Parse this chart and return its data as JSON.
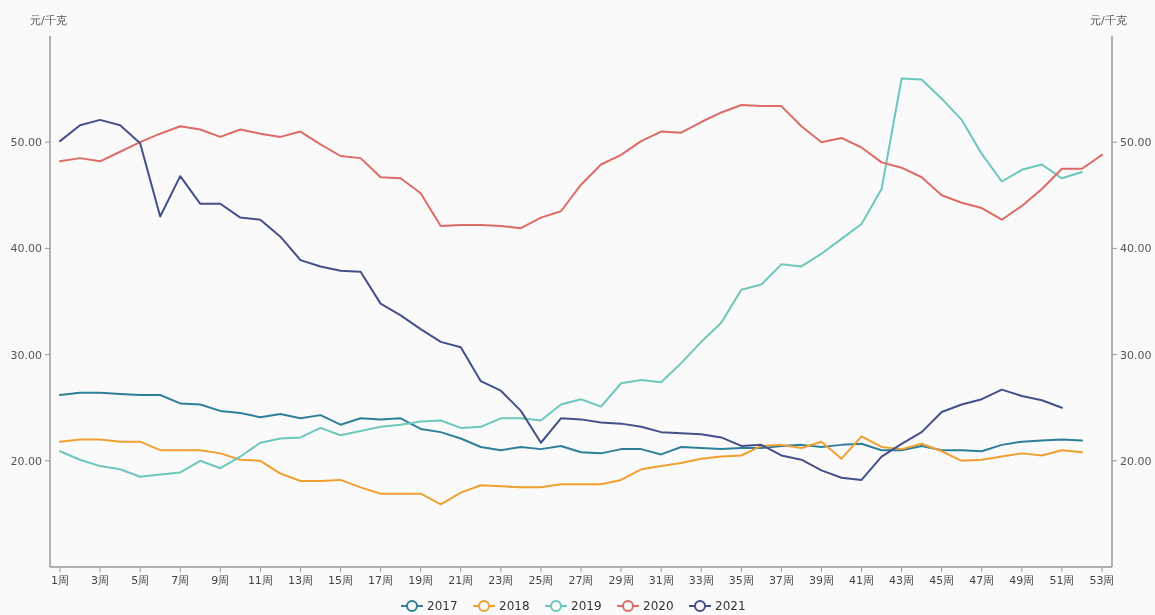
{
  "chart_data": {
    "type": "line",
    "ylabel": "元/千克",
    "y2label": "元/千克",
    "categories": [
      "1周",
      null,
      "3周",
      null,
      "5周",
      null,
      "7周",
      null,
      "9周",
      null,
      "11周",
      null,
      "13周",
      null,
      "15周",
      null,
      "17周",
      null,
      "19周",
      null,
      "21周",
      null,
      "23周",
      null,
      "25周",
      null,
      "27周",
      null,
      "29周",
      null,
      "31周",
      null,
      "33周",
      null,
      "35周",
      null,
      "37周",
      null,
      "39周",
      null,
      "41周",
      null,
      "43周",
      null,
      "45周",
      null,
      "47周",
      null,
      "49周",
      null,
      "51周",
      null,
      "53周"
    ],
    "ylim": [
      10,
      60
    ],
    "yticks": [
      {
        "value": 20,
        "label": "20.00"
      },
      {
        "value": 30,
        "label": "30.00"
      },
      {
        "value": 40,
        "label": "40.00"
      },
      {
        "value": 50,
        "label": "50.00"
      }
    ],
    "y2lim": [
      10,
      60
    ],
    "y2ticks": [
      {
        "value": 20,
        "label": "20.00"
      },
      {
        "value": 30,
        "label": "30.00"
      },
      {
        "value": 40,
        "label": "40.00"
      },
      {
        "value": 50,
        "label": "50.00"
      }
    ],
    "legend": "bottom",
    "series": [
      {
        "name": "2017",
        "color": "#2f7f9a",
        "values": [
          26.2,
          26.4,
          26.4,
          26.3,
          26.2,
          26.2,
          25.4,
          25.3,
          24.7,
          24.5,
          24.1,
          24.4,
          24.0,
          24.3,
          23.4,
          24.0,
          23.9,
          24.0,
          23.0,
          22.7,
          22.1,
          21.3,
          21.0,
          21.3,
          21.1,
          21.4,
          20.8,
          20.7,
          21.1,
          21.1,
          20.6,
          21.3,
          21.2,
          21.1,
          21.2,
          21.2,
          21.4,
          21.5,
          21.3,
          21.5,
          21.6,
          21.0,
          21.0,
          21.4,
          21.0,
          21.0,
          20.9,
          21.5,
          21.8,
          21.9,
          22.0,
          21.9,
          null
        ]
      },
      {
        "name": "2018",
        "color": "#f0a030",
        "values": [
          21.8,
          22.0,
          22.0,
          21.8,
          21.8,
          21.0,
          21.0,
          21.0,
          20.7,
          20.1,
          20.0,
          18.8,
          18.1,
          18.1,
          18.2,
          17.5,
          16.9,
          16.9,
          16.9,
          15.9,
          17.0,
          17.7,
          17.6,
          17.5,
          17.5,
          17.8,
          17.8,
          17.8,
          18.2,
          19.2,
          19.5,
          19.8,
          20.2,
          20.4,
          20.5,
          21.4,
          21.5,
          21.2,
          21.8,
          20.2,
          22.3,
          21.3,
          21.1,
          21.6,
          20.9,
          20.0,
          20.1,
          20.4,
          20.7,
          20.5,
          21.0,
          20.8,
          null
        ]
      },
      {
        "name": "2019",
        "color": "#6cc7bd",
        "values": [
          20.9,
          20.1,
          19.5,
          19.2,
          18.5,
          18.7,
          18.9,
          20.0,
          19.3,
          20.4,
          21.7,
          22.1,
          22.2,
          23.1,
          22.4,
          22.8,
          23.2,
          23.4,
          23.7,
          23.8,
          23.1,
          23.2,
          24.0,
          24.0,
          23.8,
          25.3,
          25.8,
          25.1,
          27.3,
          27.6,
          27.4,
          29.2,
          31.2,
          33.0,
          36.1,
          36.6,
          38.5,
          38.3,
          39.5,
          40.9,
          42.3,
          45.6,
          56.0,
          55.9,
          54.1,
          52.1,
          48.9,
          46.3,
          47.4,
          47.9,
          46.6,
          47.2,
          null
        ]
      },
      {
        "name": "2020",
        "color": "#dd6b66",
        "values": [
          48.2,
          48.5,
          48.2,
          49.1,
          50.0,
          50.8,
          51.5,
          51.2,
          50.5,
          51.2,
          50.8,
          50.5,
          51.0,
          49.8,
          48.7,
          48.5,
          46.7,
          46.6,
          45.2,
          42.1,
          42.2,
          42.2,
          42.1,
          41.9,
          42.9,
          43.5,
          46.0,
          47.9,
          48.8,
          50.1,
          51.0,
          50.9,
          51.9,
          52.8,
          53.5,
          53.4,
          53.4,
          51.5,
          50.0,
          50.4,
          49.5,
          48.1,
          47.6,
          46.7,
          45.0,
          44.3,
          43.8,
          42.7,
          44.0,
          45.6,
          47.5,
          47.5,
          48.8
        ]
      },
      {
        "name": "2021",
        "color": "#45508a",
        "values": [
          50.1,
          51.6,
          52.1,
          51.6,
          49.9,
          43.0,
          46.8,
          44.2,
          44.2,
          42.9,
          42.7,
          41.1,
          38.9,
          38.3,
          37.9,
          37.8,
          34.8,
          33.7,
          32.4,
          31.2,
          30.7,
          27.5,
          26.6,
          24.7,
          21.7,
          24.0,
          23.9,
          23.6,
          23.5,
          23.2,
          22.7,
          22.6,
          22.5,
          22.2,
          21.4,
          21.5,
          20.5,
          20.1,
          19.1,
          18.4,
          18.2,
          20.4,
          21.6,
          22.7,
          24.6,
          25.3,
          25.8,
          26.7,
          26.1,
          25.7,
          25.0,
          null,
          null
        ]
      }
    ]
  }
}
